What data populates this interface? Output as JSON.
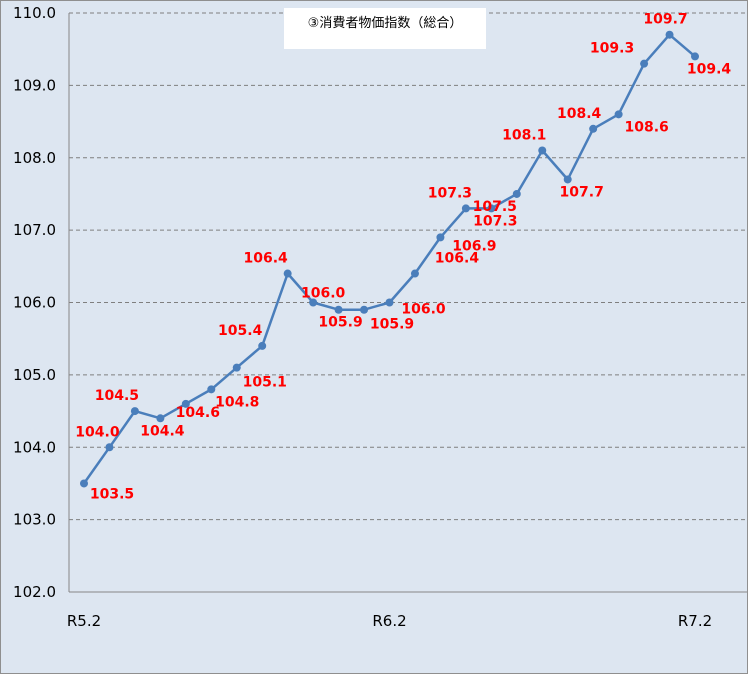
{
  "chart_data": {
    "type": "line",
    "title": "③消費者物価指数（総合）",
    "xlabel": "",
    "ylabel": "",
    "categories": [
      "R5.2",
      "",
      "",
      "",
      "",
      "",
      "",
      "",
      "",
      "",
      "",
      "",
      "R6.2",
      "",
      "",
      "",
      "",
      "",
      "",
      "",
      "",
      "",
      "",
      "",
      "R7.2"
    ],
    "series": [
      {
        "values": [
          103.5,
          104.0,
          104.5,
          104.4,
          104.6,
          104.8,
          105.1,
          105.4,
          106.4,
          106.0,
          105.9,
          105.9,
          106.0,
          106.4,
          106.9,
          107.3,
          107.3,
          107.5,
          108.1,
          107.7,
          108.4,
          108.6,
          109.3,
          109.7,
          109.4
        ],
        "color": "#4a7ebb"
      }
    ],
    "ylim": [
      102.0,
      110.0
    ],
    "yticks": [
      "102.0",
      "103.0",
      "104.0",
      "105.0",
      "106.0",
      "107.0",
      "108.0",
      "109.0",
      "110.0"
    ],
    "grid": "horizontal dashed",
    "data_label_color": "#ff0000",
    "plot_background": "#dde6f1",
    "legend": "none"
  }
}
